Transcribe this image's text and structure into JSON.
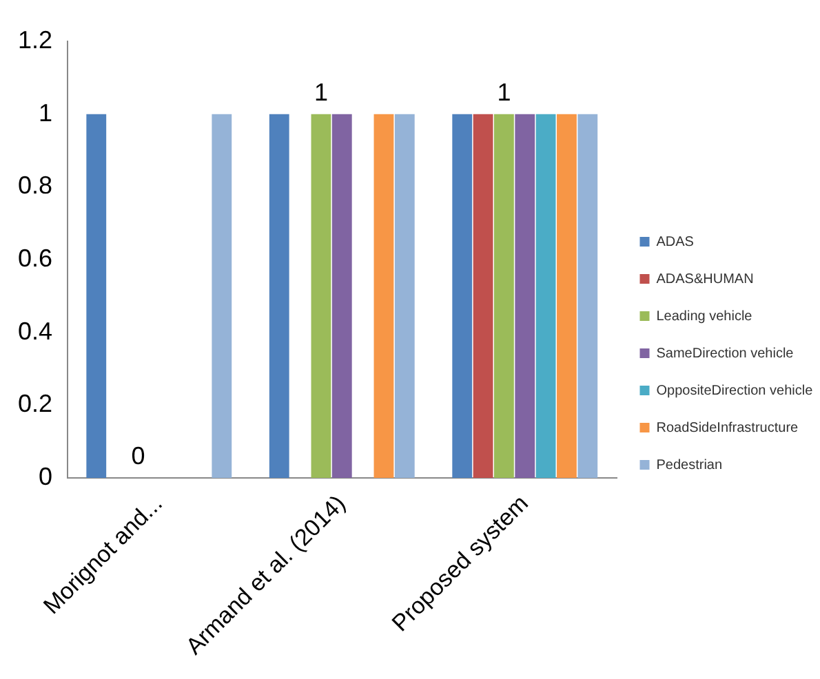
{
  "chart_data": {
    "type": "bar",
    "categories": [
      "Morignot and...",
      "Armand et al. (2014)",
      "Proposed system"
    ],
    "series": [
      {
        "name": "ADAS",
        "color": "#4f81bd",
        "values": [
          1,
          1,
          1
        ]
      },
      {
        "name": "ADAS&HUMAN",
        "color": "#c0504d",
        "values": [
          0,
          0,
          1
        ]
      },
      {
        "name": "Leading vehicle",
        "color": "#9bbb59",
        "values": [
          0,
          1,
          1
        ],
        "value_labels": [
          "0",
          "1",
          "1"
        ]
      },
      {
        "name": "SameDirection vehicle",
        "color": "#8064a2",
        "values": [
          0,
          1,
          1
        ]
      },
      {
        "name": "OppositeDirection vehicle",
        "color": "#4bacc6",
        "values": [
          0,
          0,
          1
        ]
      },
      {
        "name": "RoadSideInfrastructure",
        "color": "#f79646",
        "values": [
          0,
          1,
          1
        ]
      },
      {
        "name": "Pedestrian",
        "color": "#95b3d7",
        "values": [
          1,
          1,
          1
        ]
      }
    ],
    "ylim": [
      0,
      1.2
    ],
    "yticks": [
      0,
      0.2,
      0.4,
      0.6,
      0.8,
      1,
      1.2
    ],
    "grid": false,
    "legend": "right"
  }
}
